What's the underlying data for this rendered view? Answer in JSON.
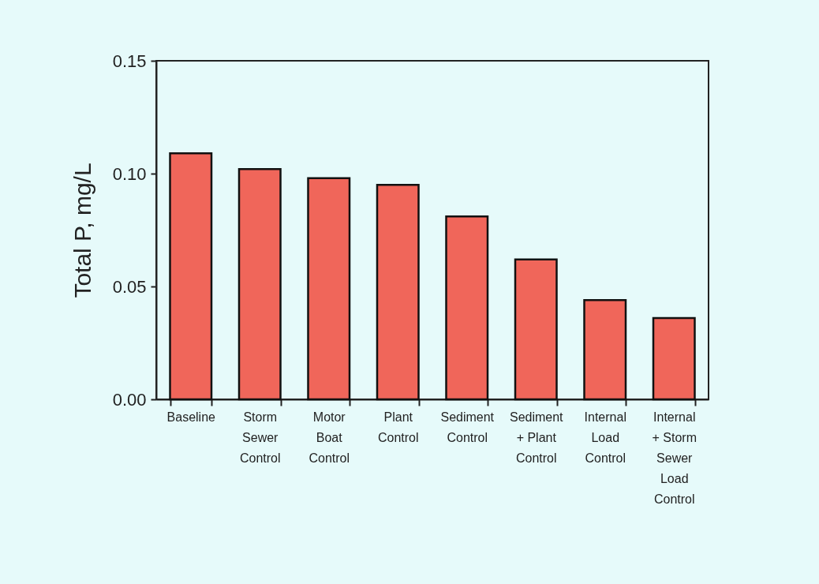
{
  "chart_data": {
    "type": "bar",
    "ylabel": "Total P, mg/L",
    "categories": [
      "Baseline",
      "Storm Sewer Control",
      "Motor Boat Control",
      "Plant Control",
      "Sediment Control",
      "Sediment + Plant Control",
      "Internal Load Control",
      "Internal + Storm Sewer Load Control"
    ],
    "values": [
      0.109,
      0.102,
      0.098,
      0.095,
      0.081,
      0.062,
      0.044,
      0.036
    ],
    "color": "#f0665a",
    "ylim": [
      0,
      0.15
    ],
    "yticks": [
      {
        "value": 0,
        "label": "0.00"
      },
      {
        "value": 0.05,
        "label": "0.05"
      },
      {
        "value": 0.1,
        "label": "0.10"
      },
      {
        "value": 0.15,
        "label": "0.15"
      }
    ],
    "grid": false
  }
}
